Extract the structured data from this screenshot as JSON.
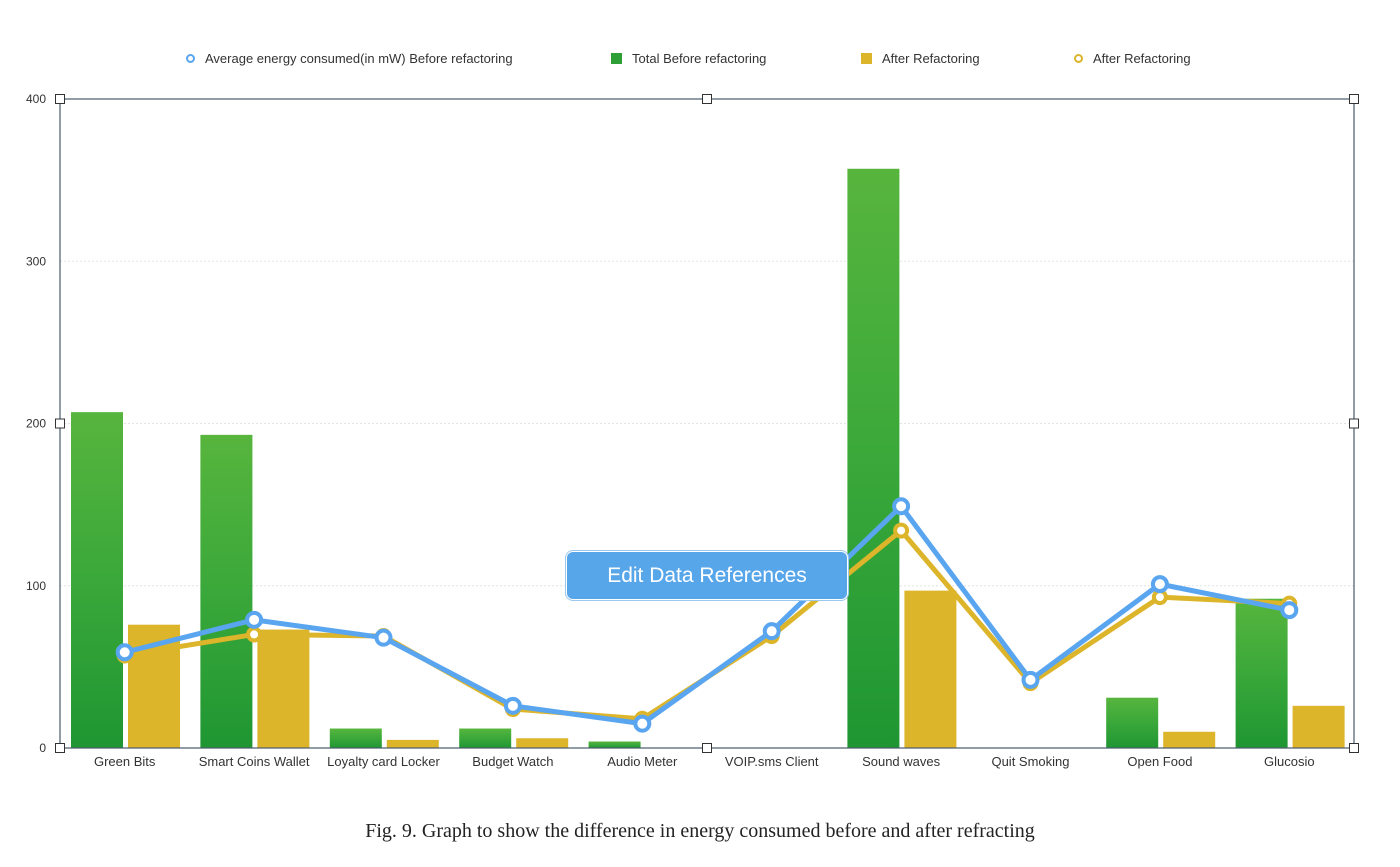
{
  "chart_data": {
    "type": "bar",
    "categories": [
      "Green Bits",
      "Smart Coins Wallet",
      "Loyalty card Locker",
      "Budget Watch",
      "Audio Meter",
      "VOIP.sms Client",
      "Sound waves",
      "Quit Smoking",
      "Open Food",
      "Glucosio"
    ],
    "ylim": [
      0,
      400
    ],
    "yticks": [
      0,
      100,
      200,
      300,
      400
    ],
    "grid": true,
    "legend_position": "top",
    "bar_series": [
      {
        "name": "Total Before refactoring",
        "color": "#2e9e36",
        "values": [
          207,
          193,
          12,
          12,
          4,
          0,
          357,
          0,
          31,
          92
        ]
      },
      {
        "name": "After Refactoring",
        "color": "#dcb52a",
        "values": [
          76,
          73,
          5,
          6,
          0,
          0,
          97,
          0,
          10,
          26
        ]
      }
    ],
    "line_series": [
      {
        "name": "Average energy consumed(in mW) Before refactoring",
        "color": "#5aa5ef",
        "values": [
          59,
          79,
          68,
          26,
          15,
          72,
          149,
          42,
          101,
          85
        ]
      },
      {
        "name": "After Refactoring",
        "color": "#dcb52a",
        "values": [
          57,
          70,
          69,
          24,
          18,
          69,
          134,
          40,
          93,
          89
        ]
      }
    ]
  },
  "legend": [
    {
      "label": "Average energy consumed(in mW) Before refactoring",
      "color": "#5aa5ef",
      "marker": "ring"
    },
    {
      "label": "Total Before refactoring",
      "color": "#2e9e36",
      "marker": "square"
    },
    {
      "label": "After Refactoring",
      "color": "#dcb52a",
      "marker": "square"
    },
    {
      "label": "After Refactoring",
      "color": "#dcb52a",
      "marker": "ring"
    }
  ],
  "edit_button_label": "Edit Data References",
  "caption": "Fig. 9.  Graph to show the difference in energy consumed before and after refracting"
}
